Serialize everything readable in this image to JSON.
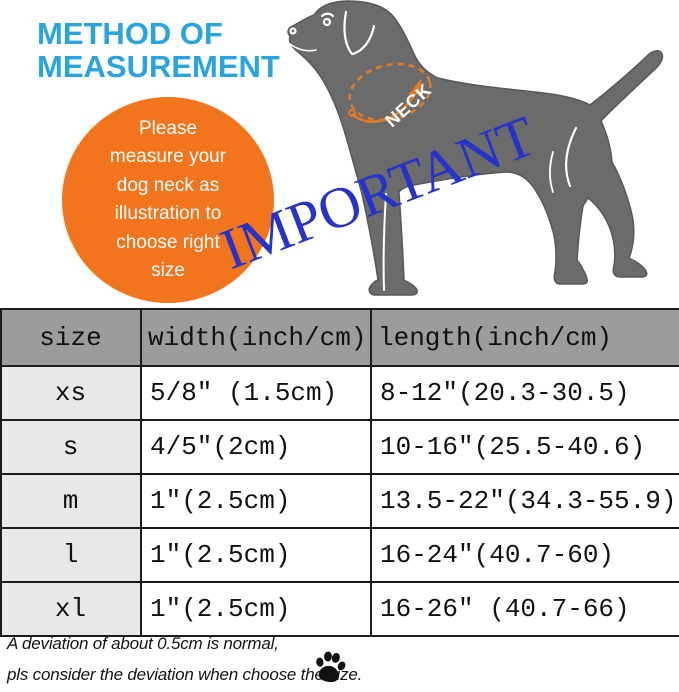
{
  "header": {
    "title_line1": "METHOD OF",
    "title_line2": "MEASUREMENT"
  },
  "instruction_circle": {
    "lines": [
      "Please",
      "measure your",
      "dog neck as",
      "illustration to",
      "choose right",
      "size"
    ]
  },
  "diagram": {
    "neck_label": "NECK",
    "important_label": "IMPORTANT"
  },
  "size_table": {
    "columns": [
      "size",
      "width(inch/cm)",
      "length(inch/cm)"
    ],
    "rows": [
      [
        "xs",
        "5/8″ (1.5cm)",
        "8-12″(20.3-30.5)"
      ],
      [
        "s",
        "4/5″(2cm)",
        "10-16″(25.5-40.6)"
      ],
      [
        "m",
        "1″(2.5cm)",
        "13.5-22″(34.3-55.9)"
      ],
      [
        "l",
        "1″(2.5cm)",
        "16-24″(40.7-60)"
      ],
      [
        "xl",
        "1″(2.5cm)",
        "16-26″ (40.7-66)"
      ]
    ]
  },
  "footnote": {
    "line1": "A deviation of about 0.5cm is normal,",
    "line2": "pls consider the deviation when choose the size."
  },
  "colors": {
    "title_blue": "#29a4e1",
    "important_blue": "#2533cb",
    "accent_orange": "#f2741c",
    "dog_gray": "#6b6b6b",
    "table_header_gray": "#9c9c9c",
    "size_column_gray": "#e8e8e8"
  },
  "icons": {
    "paw": "paw-print-icon",
    "neck_ellipse": "neck-measure-ellipse-icon"
  }
}
